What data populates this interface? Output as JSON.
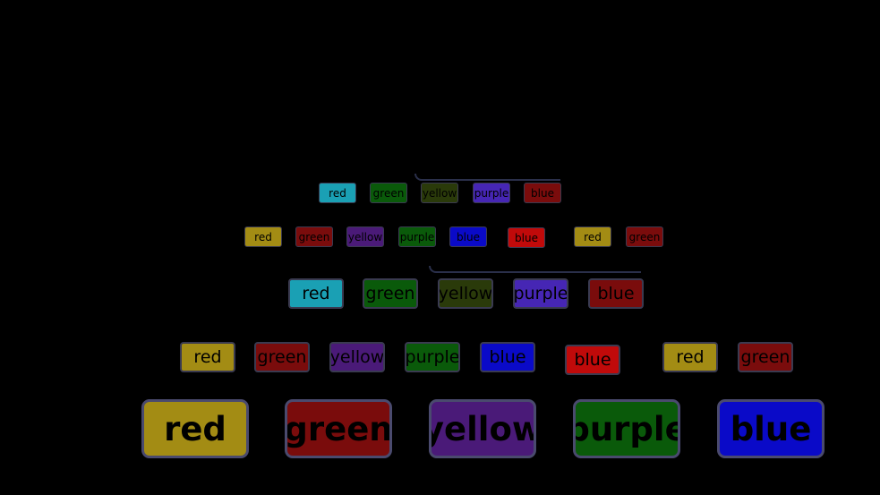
{
  "palette": {
    "cyan": "#1aa0b4",
    "yellow": "#a38c14",
    "darkred": "#7a0c0c",
    "red": "#c00a0a",
    "purple": "#4a1a78",
    "violet": "#4626b4",
    "green": "#0a5a0a",
    "blue": "#0a0ac8",
    "olive": "#2a3a0a"
  },
  "rows": {
    "row1": [
      {
        "label": "red",
        "color": "cyan"
      },
      {
        "label": "green",
        "color": "green"
      },
      {
        "label": "yellow",
        "color": "olive"
      },
      {
        "label": "purple",
        "color": "violet"
      },
      {
        "label": "blue",
        "color": "darkred"
      }
    ],
    "row2": [
      {
        "label": "red",
        "color": "yellow"
      },
      {
        "label": "green",
        "color": "darkred"
      },
      {
        "label": "yellow",
        "color": "purple"
      },
      {
        "label": "purple",
        "color": "green"
      },
      {
        "label": "blue",
        "color": "blue"
      },
      {
        "label": "blue",
        "color": "red"
      },
      {
        "label": "red",
        "color": "yellow"
      },
      {
        "label": "green",
        "color": "darkred"
      }
    ],
    "row3": [
      {
        "label": "red",
        "color": "cyan"
      },
      {
        "label": "green",
        "color": "green"
      },
      {
        "label": "yellow",
        "color": "olive"
      },
      {
        "label": "purple",
        "color": "violet"
      },
      {
        "label": "blue",
        "color": "darkred"
      }
    ],
    "row4": [
      {
        "label": "red",
        "color": "yellow"
      },
      {
        "label": "green",
        "color": "darkred"
      },
      {
        "label": "yellow",
        "color": "purple"
      },
      {
        "label": "purple",
        "color": "green"
      },
      {
        "label": "blue",
        "color": "blue"
      },
      {
        "label": "blue",
        "color": "red"
      },
      {
        "label": "red",
        "color": "yellow"
      },
      {
        "label": "green",
        "color": "darkred"
      }
    ],
    "row5": [
      {
        "label": "red",
        "color": "yellow"
      },
      {
        "label": "green",
        "color": "darkred"
      },
      {
        "label": "yellow",
        "color": "purple"
      },
      {
        "label": "purple",
        "color": "green"
      },
      {
        "label": "blue",
        "color": "blue"
      }
    ]
  }
}
